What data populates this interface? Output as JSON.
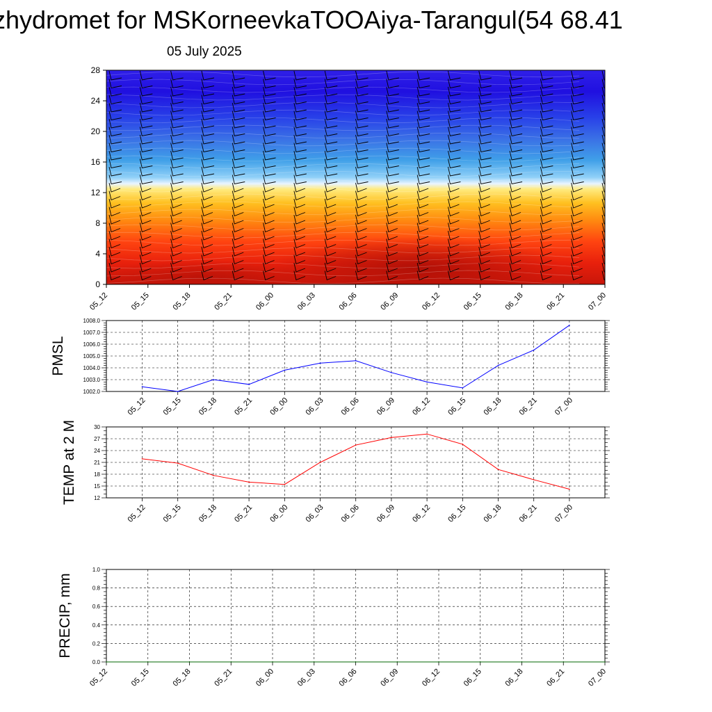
{
  "title": "zhydromet for MSKorneevkaTOOAiya-Tarangul(54 68.41",
  "subtitle": "05 July 2025",
  "time_labels": [
    "05_12",
    "05_15",
    "05_18",
    "05_21",
    "06_00",
    "06_03",
    "06_06",
    "06_09",
    "06_12",
    "06_15",
    "06_18",
    "06_21",
    "07_00"
  ],
  "chart_data": [
    {
      "type": "heatmap",
      "name": "cross-section",
      "x": [
        "05_12",
        "05_15",
        "05_18",
        "05_21",
        "06_00",
        "06_03",
        "06_06",
        "06_09",
        "06_12",
        "06_15",
        "06_18",
        "06_21",
        "07_00"
      ],
      "yticks": [
        0,
        4,
        8,
        12,
        16,
        20,
        24,
        28
      ],
      "ylim": [
        0,
        28
      ],
      "colors": {
        "warm_low": "#d11a0a",
        "warm_mid": "#ff9a10",
        "warm_top": "#ffe070",
        "cool_low": "#4aa8e8",
        "cool_mid": "#2a55e8",
        "cool_top": "#1a12d8"
      },
      "wind_barbs": true
    },
    {
      "type": "line",
      "name": "pmsl",
      "ylabel": "PMSL",
      "x": [
        "05_12",
        "05_15",
        "05_18",
        "05_21",
        "06_00",
        "06_03",
        "06_06",
        "06_09",
        "06_12",
        "06_15",
        "06_18",
        "06_21",
        "07_00"
      ],
      "values": [
        1002.4,
        1002.0,
        1003.0,
        1002.6,
        1003.8,
        1004.4,
        1004.6,
        1003.6,
        1002.8,
        1002.3,
        1004.2,
        1005.5,
        1007.6
      ],
      "ylim": [
        1002.0,
        1008.0
      ],
      "yticks": [
        "1002.0",
        "1003.0",
        "1004.0",
        "1005.0",
        "1006.0",
        "1007.0",
        "1008.0"
      ],
      "color": "#0000ff"
    },
    {
      "type": "line",
      "name": "temp",
      "ylabel": "TEMP at 2 M",
      "x": [
        "05_12",
        "05_15",
        "05_18",
        "05_21",
        "06_00",
        "06_03",
        "06_06",
        "06_09",
        "06_12",
        "06_15",
        "06_18",
        "06_21",
        "07_00"
      ],
      "values": [
        21.9,
        20.8,
        17.7,
        16.0,
        15.4,
        21.0,
        25.4,
        27.3,
        28.2,
        25.6,
        19.2,
        16.6,
        14.2
      ],
      "ylim": [
        12,
        30
      ],
      "yticks": [
        "12",
        "15",
        "18",
        "21",
        "24",
        "27",
        "30"
      ],
      "color": "#ff0000"
    },
    {
      "type": "line",
      "name": "precip",
      "ylabel": "PRECIP, mm",
      "x": [
        "05_12",
        "05_15",
        "05_18",
        "05_21",
        "06_00",
        "06_03",
        "06_06",
        "06_09",
        "06_12",
        "06_15",
        "06_18",
        "06_21",
        "07_00"
      ],
      "values": [
        0,
        0,
        0,
        0,
        0,
        0,
        0,
        0,
        0,
        0,
        0,
        0,
        0
      ],
      "ylim": [
        0.0,
        1.0
      ],
      "yticks": [
        "0.0",
        "0.2",
        "0.4",
        "0.6",
        "0.8",
        "1.0"
      ],
      "color": "#006400"
    }
  ]
}
